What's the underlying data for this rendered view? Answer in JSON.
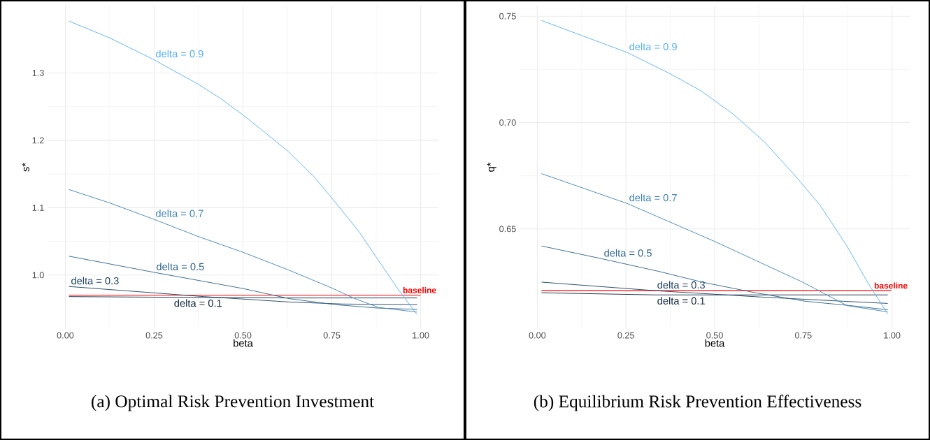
{
  "chart_data": [
    {
      "type": "line",
      "title": "(a) Optimal Risk Prevention Investment",
      "xlabel": "beta",
      "ylabel": "s*",
      "grid": true,
      "xlim": [
        -0.05,
        1.05
      ],
      "ylim": [
        0.92,
        1.4
      ],
      "xticks": [
        {
          "value": 0,
          "label": "0.00"
        },
        {
          "value": 0.25,
          "label": "0.25"
        },
        {
          "value": 0.5,
          "label": "0.50"
        },
        {
          "value": 0.75,
          "label": "0.75"
        },
        {
          "value": 1,
          "label": "1.00"
        }
      ],
      "yticks": [
        {
          "value": 1,
          "label": "1.0"
        },
        1.1,
        1.2,
        1.3
      ],
      "series": [
        {
          "name": "delta = 0.1",
          "color": "#132b43",
          "x": [
            0.01,
            0.3,
            0.63,
            0.99
          ],
          "values": [
            0.968,
            0.967,
            0.966,
            0.966
          ]
        },
        {
          "name": "delta = 0.3",
          "color": "#1f4565",
          "x": [
            0.01,
            0.39,
            0.63,
            0.78,
            0.99
          ],
          "values": [
            0.983,
            0.968,
            0.96,
            0.957,
            0.956
          ]
        },
        {
          "name": "delta = 0.5",
          "color": "#30668e",
          "x": [
            0.01,
            0.25,
            0.5,
            0.63,
            0.76,
            0.88,
            0.99
          ],
          "values": [
            1.028,
            1.004,
            0.98,
            0.965,
            0.956,
            0.951,
            0.949
          ]
        },
        {
          "name": "delta = 0.7",
          "color": "#4286b8",
          "x": [
            0.01,
            0.125,
            0.248,
            0.375,
            0.499,
            0.626,
            0.749,
            0.815,
            0.881,
            0.989
          ],
          "values": [
            1.127,
            1.107,
            1.083,
            1.057,
            1.034,
            1.008,
            0.981,
            0.965,
            0.952,
            0.945
          ]
        },
        {
          "name": "delta = 0.9",
          "color": "#56b1f7",
          "x": [
            0.01,
            0.125,
            0.248,
            0.375,
            0.437,
            0.499,
            0.561,
            0.626,
            0.7,
            0.749,
            0.827,
            0.877,
            0.938,
            0.989
          ],
          "values": [
            1.377,
            1.352,
            1.32,
            1.283,
            1.262,
            1.238,
            1.212,
            1.184,
            1.146,
            1.115,
            1.064,
            1.025,
            0.978,
            0.942
          ]
        }
      ],
      "ref_lines": [
        {
          "axis": "y",
          "value": 0.97,
          "label": "baseline",
          "color": "#ff0000"
        }
      ]
    },
    {
      "type": "line",
      "title": "(b) Equilibrium Risk Prevention Effectiveness",
      "xlabel": "beta",
      "ylabel": "q*",
      "grid": true,
      "xlim": [
        -0.05,
        1.05
      ],
      "ylim": [
        0.603,
        0.755
      ],
      "xticks": [
        {
          "value": 0,
          "label": "0.00"
        },
        {
          "value": 0.25,
          "label": "0.25"
        },
        {
          "value": 0.5,
          "label": "0.50"
        },
        {
          "value": 0.75,
          "label": "0.75"
        },
        {
          "value": 1,
          "label": "1.00"
        }
      ],
      "yticks": [
        0.65,
        {
          "value": 0.7,
          "label": "0.70"
        },
        0.75
      ],
      "series": [
        {
          "name": "delta = 0.1",
          "color": "#132b43",
          "x": [
            0.012,
            0.332,
            0.631,
            0.988
          ],
          "values": [
            0.62,
            0.619,
            0.619,
            0.619
          ]
        },
        {
          "name": "delta = 0.3",
          "color": "#1f4565",
          "x": [
            0.012,
            0.332,
            0.631,
            0.864,
            0.988
          ],
          "values": [
            0.625,
            0.621,
            0.618,
            0.616,
            0.615
          ]
        },
        {
          "name": "delta = 0.5",
          "color": "#30668e",
          "x": [
            0.012,
            0.182,
            0.344,
            0.465,
            0.615,
            0.756,
            0.881,
            0.988
          ],
          "values": [
            0.642,
            0.636,
            0.63,
            0.625,
            0.62,
            0.616,
            0.614,
            0.612
          ]
        },
        {
          "name": "delta = 0.7",
          "color": "#4286b8",
          "x": [
            0.012,
            0.253,
            0.502,
            0.748,
            0.873,
            0.988
          ],
          "values": [
            0.676,
            0.662,
            0.644,
            0.625,
            0.614,
            0.611
          ]
        },
        {
          "name": "delta = 0.9",
          "color": "#56b1f7",
          "x": [
            0.012,
            0.124,
            0.253,
            0.374,
            0.461,
            0.552,
            0.64,
            0.727,
            0.798,
            0.873,
            0.931,
            0.988
          ],
          "values": [
            0.748,
            0.741,
            0.733,
            0.723,
            0.715,
            0.704,
            0.691,
            0.675,
            0.661,
            0.642,
            0.625,
            0.61
          ]
        }
      ],
      "ref_lines": [
        {
          "axis": "y",
          "value": 0.621,
          "label": "baseline",
          "color": "#ff0000"
        }
      ]
    }
  ]
}
